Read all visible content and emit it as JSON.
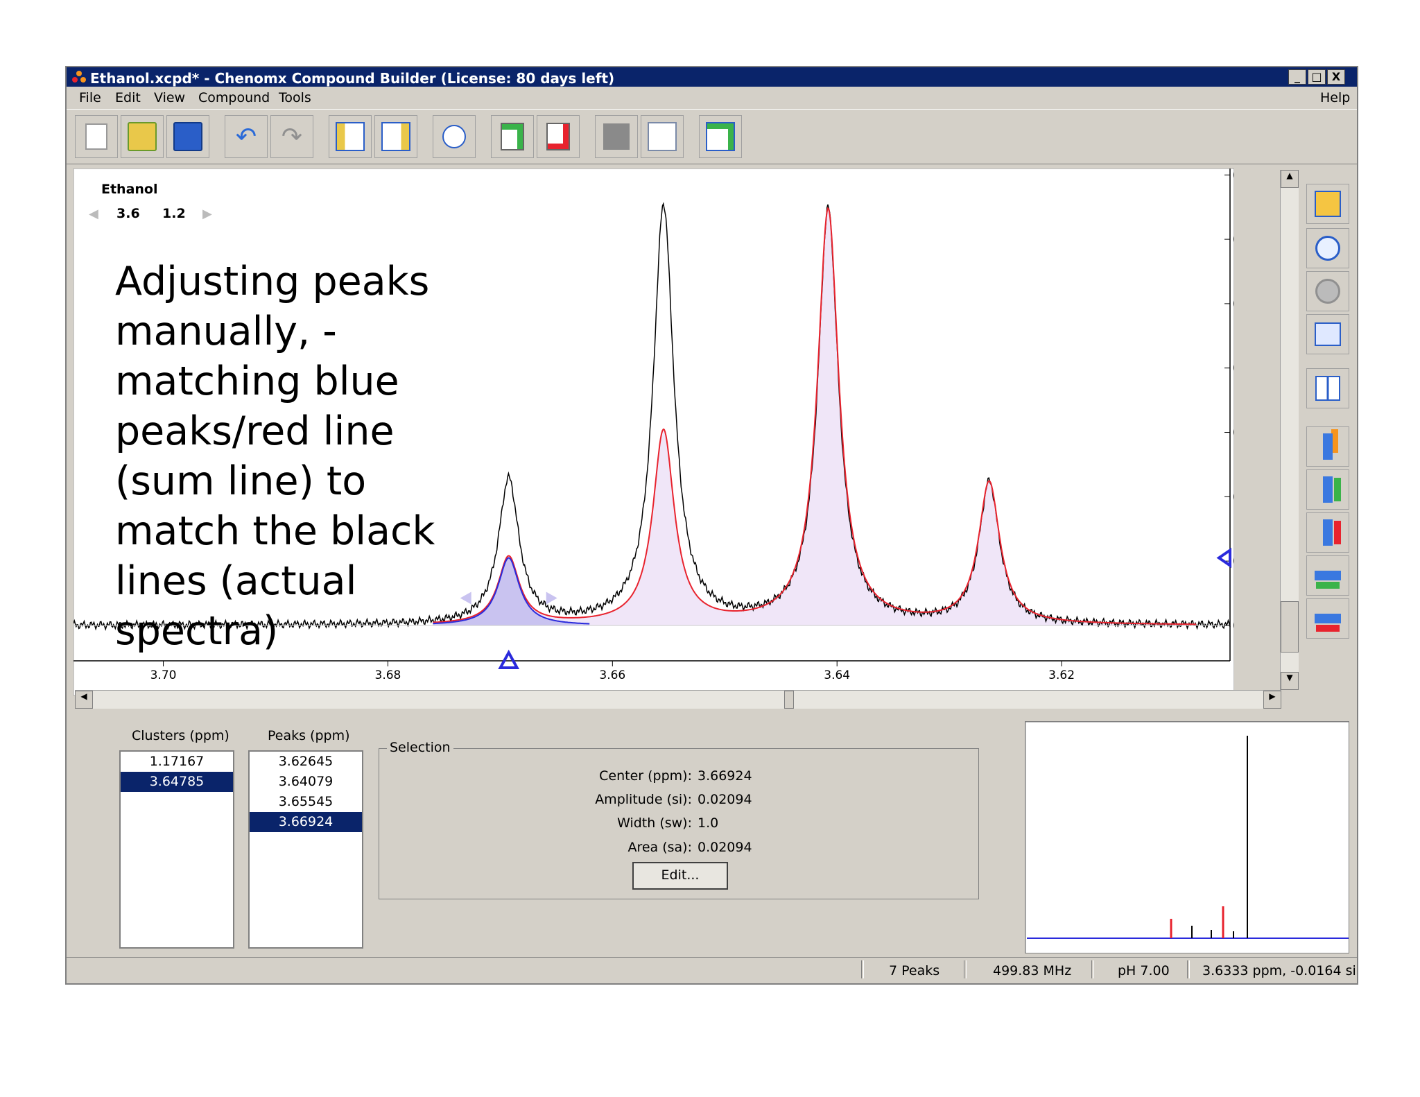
{
  "window": {
    "title": "Ethanol.xcpd* - Chenomx Compound Builder (License: 80 days left)",
    "controls": [
      "_",
      "□",
      "X"
    ]
  },
  "menu": {
    "items": [
      "File",
      "Edit",
      "View",
      "Compound",
      "Tools"
    ],
    "help": "Help"
  },
  "toolbar": {
    "icons": [
      "new-file-icon",
      "open-folder-icon",
      "save-disk-icon",
      "undo-icon",
      "redo-icon",
      "left-panel-icon",
      "right-panel-icon",
      "info-icon",
      "add-peak-icon",
      "delete-peak-icon",
      "cluster-icon",
      "fit-icon",
      "add-spectrum-icon"
    ]
  },
  "spectrum": {
    "compound_name": "Ethanol",
    "cluster_labels": [
      "3.6",
      "1.2"
    ],
    "annotation": "Adjusting peaks manually, - matching blue peaks/red line (sum line) to match the black lines (actual spectra)"
  },
  "right_tools": {
    "icons": [
      "zoom-fit-icon",
      "zoom-in-icon",
      "zoom-back-icon",
      "zoom-window-icon",
      "split-view-icon",
      "scale-up-icon",
      "scale-increase-icon",
      "scale-decrease-icon",
      "width-increase-icon",
      "width-decrease-icon"
    ]
  },
  "chart_data": {
    "type": "line",
    "xlabel": "",
    "ylabel": "",
    "xlim": [
      3.708,
      3.605
    ],
    "ylim": [
      -0.011,
      0.142
    ],
    "x_ticks": [
      "3.70",
      "3.68",
      "3.66",
      "3.64",
      "3.62"
    ],
    "x_tick_values": [
      3.7,
      3.68,
      3.66,
      3.64,
      3.62
    ],
    "y_ticks": [
      "0.14",
      "0.12",
      "0.10",
      "0.08",
      "0.06",
      "0.04",
      "0.02",
      "0.00"
    ],
    "y_tick_values": [
      0.14,
      0.12,
      0.1,
      0.08,
      0.06,
      0.04,
      0.02,
      0.0
    ],
    "peaks": [
      {
        "center": 3.66924,
        "sum_height": 0.021,
        "actual_height": 0.045
      },
      {
        "center": 3.65545,
        "sum_height": 0.06,
        "actual_height": 0.13
      },
      {
        "center": 3.64079,
        "sum_height": 0.129,
        "actual_height": 0.129
      },
      {
        "center": 3.62645,
        "sum_height": 0.044,
        "actual_height": 0.044
      }
    ],
    "selected_peak_marker": 3.66924,
    "y_marker": 0.021,
    "colors": {
      "actual": "#000000",
      "sum": "#e8232e",
      "selected": "#2a2adc",
      "fill": "#f0e6f8",
      "selected_fill": "#c9c3f0"
    }
  },
  "clusters": {
    "header": "Clusters (ppm)",
    "items": [
      "1.17167",
      "3.64785"
    ],
    "selected": 1
  },
  "peaks_list": {
    "header": "Peaks (ppm)",
    "items": [
      "3.62645",
      "3.64079",
      "3.65545",
      "3.66924"
    ],
    "selected": 3
  },
  "selection": {
    "legend": "Selection",
    "center_label": "Center (ppm):",
    "center_value": "3.66924",
    "amplitude_label": "Amplitude (si):",
    "amplitude_value": "0.02094",
    "width_label": "Width (sw):",
    "width_value": "1.0",
    "area_label": "Area (sa):",
    "area_value": "0.02094",
    "edit_label": "Edit..."
  },
  "status": {
    "peaks": "7 Peaks",
    "freq": "499.83 MHz",
    "ph": "pH 7.00",
    "cursor": "3.6333 ppm, -0.0164 si"
  }
}
